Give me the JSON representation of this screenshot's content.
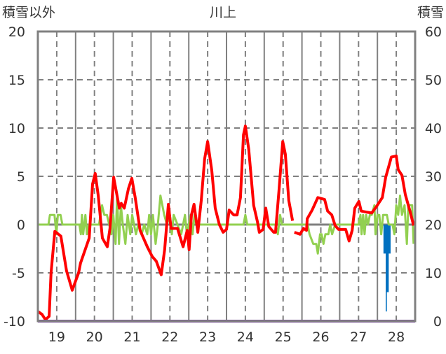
{
  "chart_data": {
    "type": "line",
    "title": "川上",
    "ylabel_left": "積雪以外",
    "ylabel_right": "積雪",
    "xlim": [
      19,
      29
    ],
    "ylim_left": [
      -10,
      20
    ],
    "ylim_right": [
      0,
      60
    ],
    "x_tick_labels": [
      {
        "t": 19.5,
        "label": "19"
      },
      {
        "t": 20.5,
        "label": "20"
      },
      {
        "t": 21.5,
        "label": "21"
      },
      {
        "t": 22.5,
        "label": "22"
      },
      {
        "t": 23.5,
        "label": "23"
      },
      {
        "t": 24.5,
        "label": "24"
      },
      {
        "t": 25.5,
        "label": "25"
      },
      {
        "t": 26.5,
        "label": "26"
      },
      {
        "t": 27.5,
        "label": "27"
      },
      {
        "t": 28.5,
        "label": "28"
      }
    ],
    "y_left_ticks": [
      "-10",
      "-5",
      "0",
      "5",
      "10",
      "15",
      "20"
    ],
    "y_right_ticks": [
      "0",
      "10",
      "20",
      "30",
      "40",
      "50",
      "60"
    ],
    "grid": true,
    "colors": {
      "temperature": "#ff0000",
      "secondary": "#92d050",
      "snow": "#0070c0",
      "base": "#7030a0",
      "frame": "#808080"
    },
    "series": [
      {
        "name": "red",
        "axis": "left",
        "points": [
          [
            19.0,
            -9.0
          ],
          [
            19.11,
            -9.3
          ],
          [
            19.2,
            -9.85
          ],
          [
            19.3,
            -9.5
          ],
          [
            19.35,
            -5
          ],
          [
            19.45,
            -0.7
          ],
          [
            19.61,
            -1.2
          ],
          [
            19.76,
            -4.8
          ],
          [
            19.91,
            -6.8
          ],
          [
            20.08,
            -5
          ],
          [
            20.13,
            -4
          ],
          [
            20.36,
            -1.4
          ],
          [
            20.45,
            4.2
          ],
          [
            20.52,
            5.3
          ],
          [
            20.6,
            3
          ],
          [
            20.71,
            -1.4
          ],
          [
            20.84,
            -2.3
          ],
          [
            20.91,
            -0.4
          ],
          [
            21.01,
            4.9
          ],
          [
            21.16,
            1.7
          ],
          [
            21.21,
            2.2
          ],
          [
            21.29,
            1.7
          ],
          [
            21.4,
            3.7
          ],
          [
            21.49,
            4.8
          ],
          [
            21.58,
            2.8
          ],
          [
            21.71,
            -0.6
          ],
          [
            21.9,
            -2.3
          ],
          [
            22.03,
            -3.3
          ],
          [
            22.14,
            -3.8
          ],
          [
            22.27,
            -5.2
          ],
          [
            22.36,
            -2.6
          ],
          [
            22.46,
            2.1
          ],
          [
            22.53,
            -0.4
          ],
          [
            22.7,
            -0.4
          ],
          [
            22.85,
            -2.3
          ],
          [
            22.96,
            -0.6
          ],
          [
            23.01,
            -2.6
          ],
          [
            23.07,
            1.0
          ],
          [
            23.14,
            2.1
          ],
          [
            23.24,
            -0.8
          ],
          [
            23.33,
            2.5
          ],
          [
            23.42,
            6.8
          ],
          [
            23.5,
            8.6
          ],
          [
            23.61,
            5.6
          ],
          [
            23.7,
            1.7
          ],
          [
            23.81,
            0
          ],
          [
            23.91,
            -0.8
          ],
          [
            24.0,
            -0.5
          ],
          [
            24.07,
            1.5
          ],
          [
            24.19,
            1
          ],
          [
            24.28,
            1
          ],
          [
            24.37,
            2.8
          ],
          [
            24.45,
            9.3
          ],
          [
            24.5,
            10.2
          ],
          [
            24.59,
            7.8
          ],
          [
            24.72,
            2
          ],
          [
            24.82,
            0.3
          ],
          [
            24.87,
            -0.8
          ],
          [
            24.97,
            -0.5
          ],
          [
            25.04,
            1.7
          ],
          [
            25.12,
            -0.2
          ],
          [
            25.25,
            -0.8
          ],
          [
            25.3,
            -0.8
          ],
          [
            25.39,
            3.5
          ],
          [
            25.49,
            8.6
          ],
          [
            25.56,
            7.3
          ],
          [
            25.65,
            2.5
          ],
          [
            25.75,
            0.4
          ],
          null,
          [
            25.8,
            -0.8
          ],
          [
            25.95,
            -1
          ],
          [
            26.04,
            -0.4
          ],
          [
            26.12,
            -0.6
          ],
          [
            26.14,
            0.6
          ],
          [
            26.27,
            1.5
          ],
          [
            26.42,
            2.8
          ],
          [
            26.6,
            2.6
          ],
          [
            26.68,
            1.4
          ],
          [
            26.79,
            1
          ],
          [
            26.88,
            -0.1
          ],
          [
            26.97,
            -0.5
          ],
          [
            27.16,
            -0.5
          ],
          [
            27.25,
            -1.7
          ],
          [
            27.33,
            -0.6
          ],
          [
            27.4,
            1.7
          ],
          [
            27.51,
            2.4
          ],
          [
            27.57,
            1.4
          ],
          [
            27.7,
            1.3
          ],
          [
            27.85,
            1.2
          ],
          [
            27.98,
            1.9
          ],
          [
            28.13,
            2.8
          ],
          [
            28.22,
            4.9
          ],
          [
            28.37,
            7.0
          ],
          [
            28.5,
            7.1
          ],
          [
            28.55,
            5.7
          ],
          [
            28.65,
            5.1
          ],
          [
            28.74,
            3.1
          ],
          [
            28.87,
            1.3
          ],
          [
            28.96,
            -0.1
          ]
        ]
      },
      {
        "name": "green",
        "axis": "left",
        "points": [
          [
            19,
            0
          ],
          [
            19.28,
            0
          ],
          [
            19.32,
            1
          ],
          [
            19.44,
            1
          ],
          [
            19.49,
            -1
          ],
          [
            19.53,
            1
          ],
          [
            19.6,
            1
          ],
          [
            19.65,
            0
          ],
          [
            20.1,
            0
          ],
          [
            20.14,
            -1
          ],
          [
            20.17,
            1
          ],
          [
            20.2,
            -1
          ],
          [
            20.26,
            1
          ],
          [
            20.3,
            -1
          ],
          [
            20.35,
            0
          ],
          [
            20.62,
            0
          ],
          [
            20.7,
            2
          ],
          [
            20.76,
            1
          ],
          [
            20.83,
            1
          ],
          [
            20.95,
            -1
          ],
          [
            21.0,
            1
          ],
          [
            21.06,
            -2
          ],
          [
            21.1,
            3
          ],
          [
            21.15,
            -2
          ],
          [
            21.2,
            2
          ],
          [
            21.25,
            0
          ],
          [
            21.32,
            -2
          ],
          [
            21.38,
            1
          ],
          [
            21.45,
            -1
          ],
          [
            21.5,
            1
          ],
          [
            21.55,
            0
          ],
          [
            21.6,
            -1
          ],
          [
            21.66,
            0
          ],
          [
            21.75,
            -1
          ],
          [
            21.82,
            0
          ],
          [
            21.9,
            -1
          ],
          [
            21.95,
            1
          ],
          [
            22.0,
            -1
          ],
          [
            22.05,
            1
          ],
          [
            22.12,
            -2
          ],
          [
            22.18,
            0
          ],
          [
            22.25,
            3
          ],
          [
            22.35,
            1
          ],
          [
            22.42,
            0
          ],
          [
            22.5,
            1
          ],
          [
            22.55,
            -1
          ],
          [
            22.6,
            1
          ],
          [
            22.7,
            0
          ],
          [
            22.8,
            -1
          ],
          [
            22.9,
            1
          ],
          [
            22.95,
            -1
          ],
          [
            23.0,
            0
          ],
          [
            23.05,
            1
          ],
          [
            23.1,
            -1
          ],
          [
            23.15,
            1
          ],
          [
            23.2,
            0
          ],
          [
            24.45,
            0
          ],
          [
            24.5,
            1
          ],
          [
            24.55,
            0
          ],
          [
            25.3,
            0
          ],
          [
            25.36,
            -1
          ],
          [
            25.42,
            1
          ],
          [
            25.47,
            0
          ],
          [
            26.15,
            0
          ],
          [
            26.2,
            -1
          ],
          [
            26.3,
            -2
          ],
          [
            26.38,
            -2
          ],
          [
            26.42,
            -3
          ],
          [
            26.48,
            -1
          ],
          [
            26.52,
            -1
          ],
          [
            26.57,
            -2
          ],
          [
            26.62,
            -1
          ],
          [
            26.7,
            -1
          ],
          [
            26.75,
            0
          ],
          [
            26.8,
            -1
          ],
          [
            26.88,
            0
          ],
          [
            27.5,
            0
          ],
          [
            27.55,
            1
          ],
          [
            27.58,
            -1
          ],
          [
            27.62,
            1
          ],
          [
            27.66,
            -1
          ],
          [
            27.7,
            1
          ],
          [
            27.75,
            0
          ],
          [
            27.8,
            1
          ],
          [
            27.85,
            1
          ],
          [
            27.92,
            2
          ],
          [
            27.95,
            -1
          ],
          [
            28.0,
            1
          ],
          [
            28.05,
            1
          ],
          [
            28.1,
            -1
          ],
          [
            28.15,
            1
          ],
          [
            28.25,
            1
          ],
          [
            28.3,
            0
          ],
          [
            28.4,
            0
          ],
          [
            28.45,
            -1
          ],
          [
            28.5,
            2
          ],
          [
            28.55,
            1
          ],
          [
            28.6,
            3
          ],
          [
            28.65,
            1
          ],
          [
            28.72,
            2
          ],
          [
            28.78,
            -2
          ],
          [
            28.82,
            2
          ],
          [
            28.92,
            2
          ],
          [
            28.96,
            -2
          ]
        ]
      },
      {
        "name": "purple",
        "axis": "right",
        "points": [
          [
            19,
            0
          ],
          [
            29,
            0
          ]
        ]
      }
    ],
    "snow_bars": [
      {
        "t0": 28.16,
        "t1": 28.35,
        "low": 14,
        "high": 20
      },
      {
        "t0": 28.24,
        "t1": 28.3,
        "low": 6,
        "high": 20
      },
      {
        "t0": 28.22,
        "t1": 28.25,
        "low": 2,
        "high": 20
      }
    ]
  }
}
